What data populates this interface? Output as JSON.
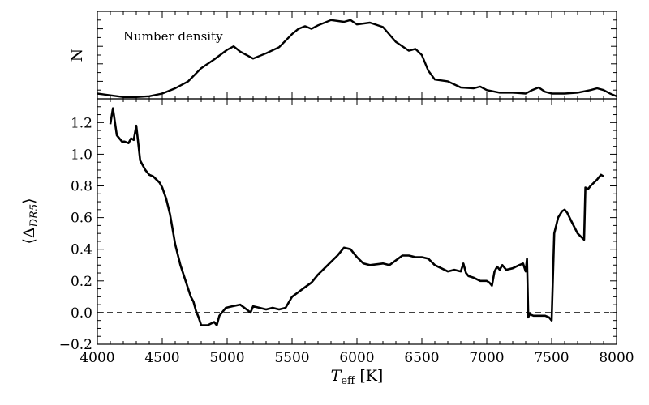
{
  "chart_data": [
    {
      "type": "line",
      "ylabel": "N",
      "annotation": "Number density",
      "xlim": [
        4000,
        8000
      ],
      "series": [
        {
          "x": [
            4000,
            4100,
            4200,
            4300,
            4400,
            4500,
            4600,
            4700,
            4800,
            4900,
            5000,
            5050,
            5100,
            5200,
            5300,
            5400,
            5500,
            5550,
            5600,
            5650,
            5700,
            5800,
            5900,
            5950,
            6000,
            6100,
            6200,
            6300,
            6400,
            6450,
            6500,
            6550,
            6600,
            6700,
            6800,
            6900,
            6950,
            7000,
            7100,
            7200,
            7300,
            7350,
            7400,
            7450,
            7500,
            7600,
            7700,
            7800,
            7850,
            7900,
            7950,
            8000
          ],
          "y": [
            0.06,
            0.04,
            0.02,
            0.02,
            0.03,
            0.06,
            0.12,
            0.2,
            0.35,
            0.45,
            0.56,
            0.6,
            0.54,
            0.46,
            0.52,
            0.59,
            0.74,
            0.8,
            0.83,
            0.8,
            0.84,
            0.9,
            0.88,
            0.9,
            0.85,
            0.87,
            0.82,
            0.65,
            0.55,
            0.57,
            0.5,
            0.32,
            0.22,
            0.2,
            0.13,
            0.12,
            0.14,
            0.1,
            0.07,
            0.07,
            0.06,
            0.1,
            0.13,
            0.08,
            0.06,
            0.06,
            0.07,
            0.1,
            0.12,
            0.1,
            0.06,
            0.03
          ]
        }
      ]
    },
    {
      "type": "line",
      "xlabel_main": "T",
      "xlabel_sub": "eff",
      "xlabel_unit": " [K]",
      "ylabel": "⟨Δ",
      "ylabel_sub": "DR5",
      "ylabel_close": "⟩",
      "xlim": [
        4000,
        8000
      ],
      "ylim": [
        -0.2,
        1.35
      ],
      "xticks": [
        "4000",
        "4500",
        "5000",
        "5500",
        "6000",
        "6500",
        "7000",
        "7500",
        "8000"
      ],
      "yticks": [
        "−0.2",
        "0.0",
        "0.2",
        "0.4",
        "0.6",
        "0.8",
        "1.0",
        "1.2"
      ],
      "reference_line": 0.0,
      "series": [
        {
          "x": [
            4100,
            4120,
            4150,
            4190,
            4210,
            4240,
            4260,
            4280,
            4300,
            4330,
            4370,
            4400,
            4430,
            4480,
            4500,
            4530,
            4560,
            4600,
            4640,
            4680,
            4720,
            4740,
            4760,
            4780,
            4800,
            4850,
            4900,
            4920,
            4940,
            4960,
            4990,
            5040,
            5100,
            5150,
            5180,
            5200,
            5250,
            5300,
            5350,
            5400,
            5450,
            5500,
            5550,
            5600,
            5650,
            5700,
            5750,
            5800,
            5850,
            5900,
            5950,
            6000,
            6050,
            6100,
            6200,
            6250,
            6300,
            6350,
            6400,
            6450,
            6500,
            6550,
            6600,
            6650,
            6700,
            6750,
            6800,
            6820,
            6840,
            6860,
            6900,
            6950,
            7000,
            7020,
            7040,
            7060,
            7080,
            7100,
            7120,
            7150,
            7200,
            7250,
            7280,
            7300,
            7310,
            7320,
            7330,
            7360,
            7400,
            7450,
            7480,
            7500,
            7520,
            7550,
            7580,
            7600,
            7620,
            7650,
            7700,
            7750,
            7760,
            7780,
            7800,
            7850,
            7880,
            7900
          ],
          "y": [
            1.19,
            1.29,
            1.12,
            1.08,
            1.08,
            1.07,
            1.1,
            1.09,
            1.18,
            0.96,
            0.9,
            0.87,
            0.86,
            0.82,
            0.79,
            0.72,
            0.62,
            0.43,
            0.3,
            0.2,
            0.1,
            0.07,
            0.01,
            -0.03,
            -0.08,
            -0.08,
            -0.06,
            -0.08,
            -0.02,
            0.0,
            0.03,
            0.04,
            0.05,
            0.02,
            0.0,
            0.04,
            0.03,
            0.02,
            0.03,
            0.02,
            0.03,
            0.1,
            0.13,
            0.16,
            0.19,
            0.24,
            0.28,
            0.32,
            0.36,
            0.41,
            0.4,
            0.35,
            0.31,
            0.3,
            0.31,
            0.3,
            0.33,
            0.36,
            0.36,
            0.35,
            0.35,
            0.34,
            0.3,
            0.28,
            0.26,
            0.27,
            0.26,
            0.31,
            0.25,
            0.23,
            0.22,
            0.2,
            0.2,
            0.19,
            0.17,
            0.26,
            0.29,
            0.27,
            0.3,
            0.27,
            0.28,
            0.3,
            0.31,
            0.26,
            0.34,
            -0.03,
            -0.01,
            -0.02,
            -0.02,
            -0.02,
            -0.03,
            -0.05,
            0.5,
            0.6,
            0.64,
            0.65,
            0.63,
            0.58,
            0.5,
            0.46,
            0.79,
            0.78,
            0.8,
            0.84,
            0.87,
            0.86
          ]
        }
      ]
    }
  ]
}
